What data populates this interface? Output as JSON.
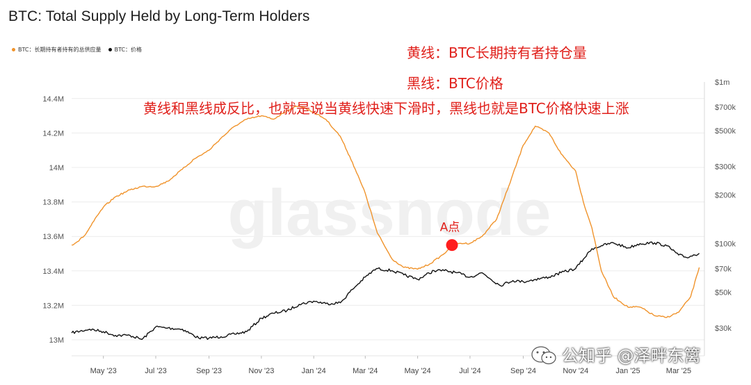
{
  "title": "BTC: Total Supply Held by Long-Term Holders",
  "legend": [
    {
      "label": "BTC：长期持有者持有的总供应量",
      "color": "#f0932b"
    },
    {
      "label": "BTC：价格",
      "color": "#111111"
    }
  ],
  "notes": {
    "line1": "黄线：BTC长期持有者持仓量",
    "line2": "黑线：BTC价格",
    "line3": "黄线和黑线成反比，也就是说当黄线快速下滑时，黑线也就是BTC价格快速上涨"
  },
  "annotation": {
    "label": "A点",
    "x": "2024-06-10",
    "y": 13.55,
    "color": "#ff1e1e"
  },
  "watermark": {
    "brand": "glassnode",
    "credit": "公知乎 @泽畔东篱"
  },
  "chart_data": {
    "type": "line",
    "x_ticks": [
      "May '23",
      "Jul '23",
      "Sep '23",
      "Nov '23",
      "Jan '24",
      "Mar '24",
      "May '24",
      "Jul '24",
      "Sep '24",
      "Nov '24",
      "Jan '25",
      "Mar '25"
    ],
    "y_left": {
      "ticks": [
        "13M",
        "13.2M",
        "13.4M",
        "13.6M",
        "13.8M",
        "14M",
        "14.2M",
        "14.4M"
      ],
      "range": [
        13.0,
        14.4
      ]
    },
    "y_right": {
      "ticks": [
        "$30k",
        "$50k",
        "$70k",
        "$100k",
        "$200k",
        "$300k",
        "$500k",
        "$700k",
        "$1m"
      ],
      "scale": "log"
    },
    "grid": "horizontal",
    "series": [
      {
        "name": "BTC：长期持有者持有的总供应量",
        "axis": "left",
        "color": "#f0932b",
        "x": [
          "2023-03-25",
          "2023-04-01",
          "2023-04-10",
          "2023-04-20",
          "2023-05-01",
          "2023-05-15",
          "2023-06-01",
          "2023-06-15",
          "2023-07-01",
          "2023-07-15",
          "2023-08-01",
          "2023-08-15",
          "2023-09-01",
          "2023-09-15",
          "2023-10-01",
          "2023-10-15",
          "2023-11-01",
          "2023-11-15",
          "2023-12-01",
          "2023-12-15",
          "2024-01-01",
          "2024-01-15",
          "2024-02-01",
          "2024-02-15",
          "2024-03-01",
          "2024-03-15",
          "2024-04-01",
          "2024-04-15",
          "2024-05-01",
          "2024-05-15",
          "2024-06-01",
          "2024-06-10",
          "2024-06-20",
          "2024-07-01",
          "2024-07-15",
          "2024-08-01",
          "2024-08-15",
          "2024-09-01",
          "2024-09-15",
          "2024-10-01",
          "2024-10-15",
          "2024-11-01",
          "2024-11-10",
          "2024-11-20",
          "2024-12-01",
          "2024-12-15",
          "2025-01-01",
          "2025-01-15",
          "2025-02-01",
          "2025-02-15",
          "2025-03-01",
          "2025-03-15",
          "2025-03-25"
        ],
        "values": [
          13.55,
          13.57,
          13.61,
          13.69,
          13.77,
          13.83,
          13.87,
          13.89,
          13.89,
          13.92,
          13.99,
          14.05,
          14.1,
          14.17,
          14.24,
          14.28,
          14.3,
          14.28,
          14.33,
          14.36,
          14.32,
          14.28,
          14.18,
          14.03,
          13.85,
          13.62,
          13.47,
          13.42,
          13.41,
          13.44,
          13.5,
          13.55,
          13.56,
          13.56,
          13.6,
          13.7,
          13.89,
          14.13,
          14.24,
          14.2,
          14.08,
          13.98,
          13.8,
          13.65,
          13.4,
          13.25,
          13.19,
          13.19,
          13.14,
          13.13,
          13.16,
          13.25,
          13.42
        ]
      },
      {
        "name": "BTC：价格",
        "axis": "right",
        "color": "#111111",
        "x": [
          "2023-03-25",
          "2023-04-15",
          "2023-05-01",
          "2023-05-15",
          "2023-06-01",
          "2023-06-15",
          "2023-07-01",
          "2023-07-15",
          "2023-08-01",
          "2023-08-20",
          "2023-09-01",
          "2023-09-15",
          "2023-10-01",
          "2023-10-15",
          "2023-11-01",
          "2023-11-15",
          "2023-12-01",
          "2023-12-15",
          "2024-01-01",
          "2024-01-15",
          "2024-02-01",
          "2024-02-15",
          "2024-03-01",
          "2024-03-14",
          "2024-04-01",
          "2024-04-15",
          "2024-05-01",
          "2024-05-20",
          "2024-06-01",
          "2024-06-15",
          "2024-07-01",
          "2024-07-15",
          "2024-08-05",
          "2024-08-20",
          "2024-09-01",
          "2024-09-15",
          "2024-10-01",
          "2024-10-15",
          "2024-11-01",
          "2024-11-10",
          "2024-11-20",
          "2024-12-01",
          "2024-12-15",
          "2025-01-01",
          "2025-01-15",
          "2025-02-01",
          "2025-02-15",
          "2025-03-01",
          "2025-03-10",
          "2025-03-25"
        ],
        "values": [
          28000,
          29500,
          28500,
          27000,
          27000,
          25500,
          30500,
          30000,
          29500,
          26000,
          26000,
          26500,
          27500,
          28500,
          34500,
          37000,
          38500,
          42000,
          44000,
          42500,
          43000,
          52000,
          62000,
          70000,
          68000,
          64000,
          60000,
          68000,
          68000,
          66000,
          62000,
          66000,
          55000,
          59000,
          58000,
          60000,
          62000,
          66000,
          70000,
          80000,
          93000,
          97000,
          101000,
          94000,
          100000,
          101000,
          97000,
          85000,
          82000,
          87000
        ]
      }
    ]
  }
}
